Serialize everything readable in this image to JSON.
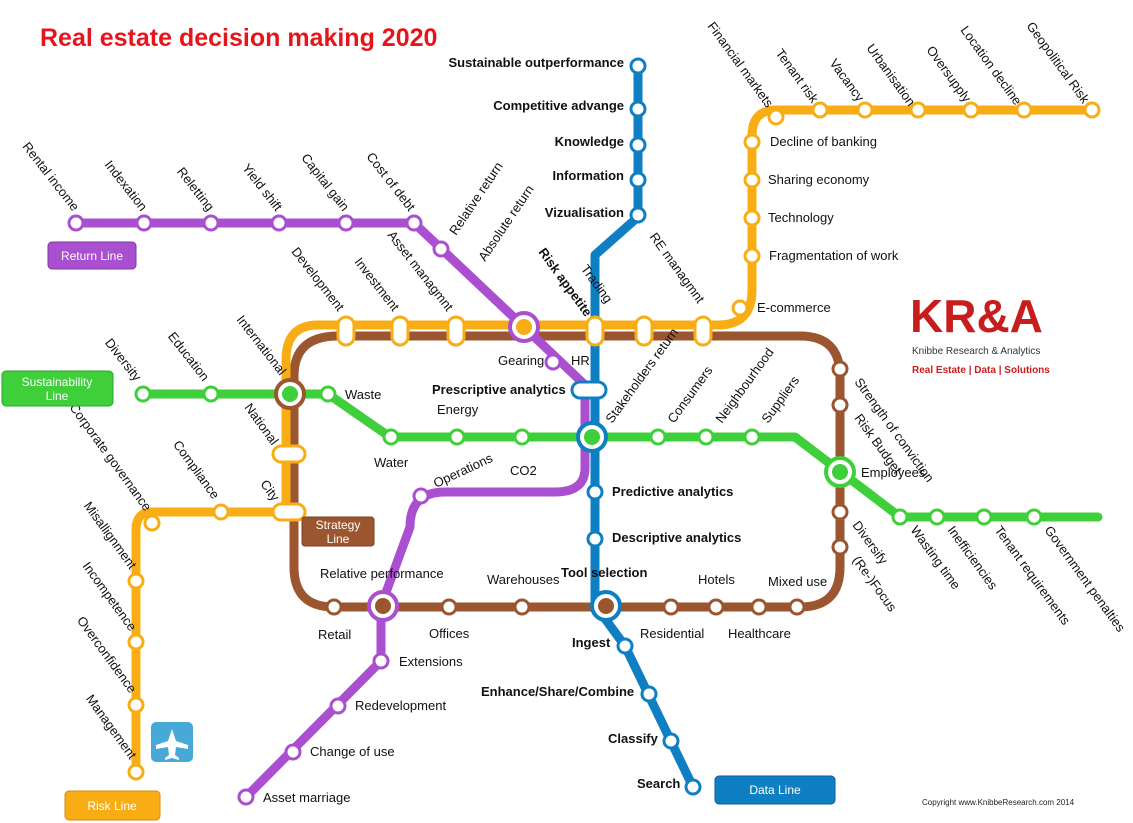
{
  "title": "Real estate decision making 2020",
  "colors": {
    "title": "#e8141c",
    "return_line": "#a94fd0",
    "data_line": "#0f7fc4",
    "risk_line": "#f8ad14",
    "sustainability_line": "#3fcf3a",
    "strategy_line": "#9b5630",
    "logo": "#c81d1d"
  },
  "lines": {
    "return_line": "Return Line",
    "sustainability_line": "Sustainability Line",
    "strategy_line": "Strategy Line",
    "risk_line": "Risk Line",
    "data_line": "Data Line"
  },
  "stations": {
    "rental_income": "Rental income",
    "indexation": "Indexation",
    "reletting": "Reletting",
    "yield_shift": "Yield shift",
    "capital_gain": "Capital gain",
    "cost_of_debt": "Cost of debt",
    "relative_return": "Relative return",
    "absolute_return": "Absolute return",
    "asset_managmnt": "Asset managmnt",
    "investment": "Investment",
    "development": "Development",
    "international": "International",
    "sustainable_outperformance": "Sustainable outperformance",
    "competitive_advange": "Competitive advange",
    "knowledge": "Knowledge",
    "information": "Information",
    "vizualisation": "Vizualisation",
    "risk_appetite": "Risk appetite",
    "trading": "Trading",
    "re_managmnt": "RE managmnt",
    "e_commerce": "E-commerce",
    "fragmentation_of_work": "Fragmentation of work",
    "technology": "Technology",
    "sharing_economy": "Sharing economy",
    "decline_of_banking": "Decline of banking",
    "financial_markets": "Financial markets",
    "tenant_risk": "Tenant risk",
    "vacancy": "Vacancy",
    "urbanisation": "Urbanisation",
    "oversupply": "Oversupply",
    "location_decline": "Location decline",
    "geopolitical_risk": "Geopolitical Risk",
    "gearing": "Gearing",
    "hr": "HR",
    "prescriptive_analytics": "Prescriptive analytics",
    "stakeholders_return": "Stakeholders return",
    "consumers": "Consumers",
    "neighbourhood": "Neighbourhood",
    "suppliers": "Suppliers",
    "strength_of_conviction": "Strength of conviction",
    "risk_budget": "Risk Budget",
    "employees": "Employees",
    "diversify": "Diversify",
    "re_focus": "(Re-)Focus",
    "wasting_time": "Wasting time",
    "inefficiencies": "Inefficiencies",
    "tenant_requirements": "Tenant requirements",
    "government_penalties": "Government penalties",
    "diversity": "Diversity",
    "education": "Education",
    "waste": "Waste",
    "energy": "Energy",
    "water": "Water",
    "co2": "CO2",
    "operations": "Operations",
    "national": "National",
    "city": "City",
    "compliance": "Compliance",
    "corporate_governance": "Corporate governance",
    "misallignment": "Misallignment",
    "incompetence": "Incompetence",
    "overconfidence": "Overconfidence",
    "management": "Management",
    "predictive_analytics": "Predictive analytics",
    "descriptive_analytics": "Descriptive analytics",
    "tool_selection": "Tool selection",
    "relative_performance": "Relative performance",
    "warehouses": "Warehouses",
    "hotels": "Hotels",
    "mixed_use": "Mixed use",
    "retail": "Retail",
    "offices": "Offices",
    "residential": "Residential",
    "healthcare": "Healthcare",
    "ingest": "Ingest",
    "enhance_share_combine": "Enhance/Share/Combine",
    "classify": "Classify",
    "search": "Search",
    "extensions": "Extensions",
    "redevelopment": "Redevelopment",
    "change_of_use": "Change of use",
    "asset_marriage": "Asset marriage"
  },
  "logo": {
    "name": "KR&A",
    "subtitle": "Knibbe Research & Analytics",
    "tagline": "Real Estate | Data | Solutions"
  },
  "copyright": "Copyright www.KnibbeResearch.com 2014",
  "icons": {
    "airport": "airplane-icon"
  }
}
